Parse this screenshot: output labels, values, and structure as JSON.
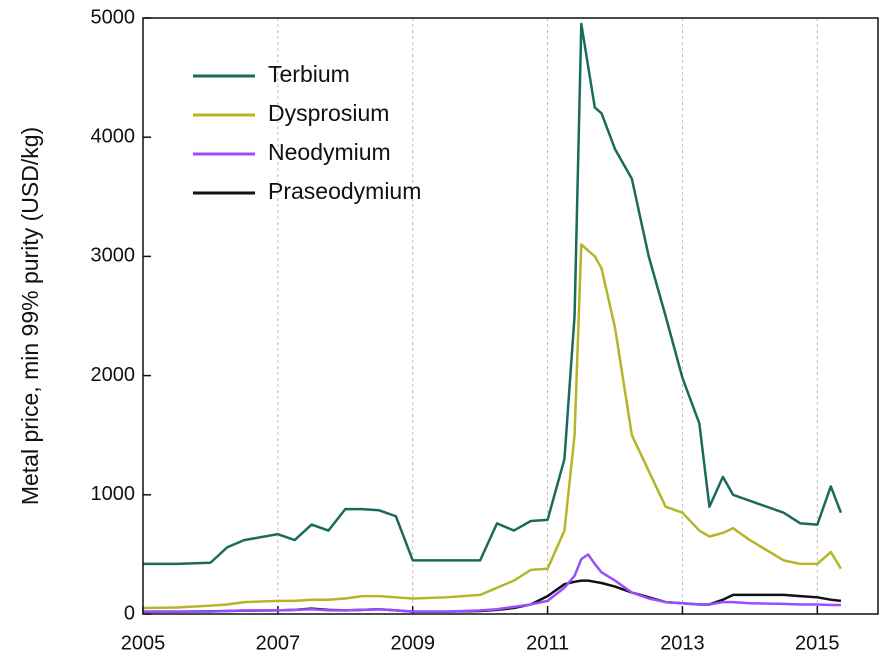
{
  "chart_data": {
    "type": "line",
    "y_label": "Metal price, min 99% purity (USD/kg)",
    "x": [
      2005,
      2005.5,
      2006,
      2006.25,
      2006.5,
      2007,
      2007.25,
      2007.5,
      2007.75,
      2008,
      2008.25,
      2008.5,
      2008.75,
      2009,
      2009.5,
      2010,
      2010.25,
      2010.5,
      2010.75,
      2011,
      2011.25,
      2011.4,
      2011.5,
      2011.6,
      2011.7,
      2011.8,
      2012,
      2012.25,
      2012.5,
      2012.75,
      2013,
      2013.25,
      2013.4,
      2013.6,
      2013.75,
      2014,
      2014.5,
      2014.75,
      2015,
      2015.2,
      2015.35
    ],
    "series": [
      {
        "name": "Terbium",
        "color": "#1a6b5e",
        "values": [
          420,
          420,
          430,
          560,
          620,
          670,
          620,
          750,
          700,
          880,
          880,
          870,
          820,
          450,
          450,
          450,
          760,
          700,
          780,
          790,
          1300,
          2500,
          4950,
          4600,
          4250,
          4200,
          3900,
          3650,
          3000,
          2500,
          1980,
          1600,
          900,
          1150,
          1000,
          950,
          850,
          760,
          750,
          1070,
          850
        ]
      },
      {
        "name": "Dysprosium",
        "color": "#b5b52a",
        "values": [
          50,
          55,
          70,
          80,
          100,
          110,
          110,
          120,
          120,
          130,
          150,
          150,
          140,
          130,
          140,
          160,
          220,
          280,
          370,
          380,
          700,
          1500,
          3100,
          3050,
          3000,
          2900,
          2400,
          1500,
          1200,
          900,
          850,
          700,
          650,
          680,
          720,
          620,
          450,
          420,
          420,
          520,
          380
        ]
      },
      {
        "name": "Neodymium",
        "color": "#9b4dff",
        "values": [
          20,
          20,
          20,
          25,
          30,
          30,
          35,
          40,
          30,
          30,
          35,
          40,
          30,
          20,
          20,
          30,
          40,
          60,
          80,
          110,
          220,
          320,
          460,
          500,
          420,
          350,
          280,
          180,
          130,
          100,
          90,
          80,
          80,
          100,
          100,
          90,
          85,
          80,
          80,
          75,
          75
        ]
      },
      {
        "name": "Praseodymium",
        "color": "#111111",
        "values": [
          20,
          20,
          22,
          25,
          28,
          30,
          35,
          45,
          35,
          30,
          35,
          40,
          30,
          20,
          20,
          25,
          35,
          50,
          80,
          150,
          250,
          270,
          280,
          280,
          270,
          260,
          230,
          180,
          140,
          100,
          90,
          80,
          80,
          120,
          160,
          160,
          160,
          150,
          140,
          120,
          110
        ]
      }
    ],
    "xlim": [
      2005,
      2015.9
    ],
    "ylim": [
      0,
      5000
    ],
    "xticks": [
      2005,
      2007,
      2009,
      2011,
      2013,
      2015
    ],
    "yticks": [
      0,
      1000,
      2000,
      3000,
      4000,
      5000
    ],
    "grid": true,
    "legend": "upper left"
  }
}
